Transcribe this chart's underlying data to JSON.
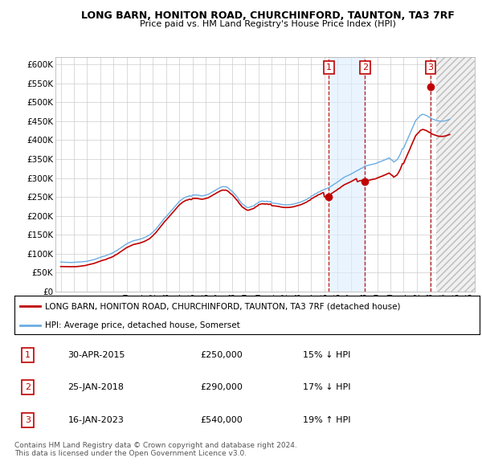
{
  "title": "LONG BARN, HONITON ROAD, CHURCHINFORD, TAUNTON, TA3 7RF",
  "subtitle": "Price paid vs. HM Land Registry's House Price Index (HPI)",
  "ylabel_ticks": [
    "£0",
    "£50K",
    "£100K",
    "£150K",
    "£200K",
    "£250K",
    "£300K",
    "£350K",
    "£400K",
    "£450K",
    "£500K",
    "£550K",
    "£600K"
  ],
  "ytick_values": [
    0,
    50000,
    100000,
    150000,
    200000,
    250000,
    300000,
    350000,
    400000,
    450000,
    500000,
    550000,
    600000
  ],
  "ylim": [
    0,
    620000
  ],
  "xlim_start": 1994.6,
  "xlim_end": 2026.4,
  "hpi_color": "#6aade4",
  "price_color": "#c00000",
  "grid_color": "#cccccc",
  "bg_color": "#ffffff",
  "legend_label_red": "LONG BARN, HONITON ROAD, CHURCHINFORD, TAUNTON, TA3 7RF (detached house)",
  "legend_label_blue": "HPI: Average price, detached house, Somerset",
  "shade_start": 2015.33,
  "shade_end": 2018.07,
  "hatch_start": 2023.5,
  "transactions": [
    {
      "num": 1,
      "date": "30-APR-2015",
      "price": 250000,
      "pct": "15%",
      "dir": "↓",
      "x_year": 2015.33
    },
    {
      "num": 2,
      "date": "25-JAN-2018",
      "price": 290000,
      "pct": "17%",
      "dir": "↓",
      "x_year": 2018.07
    },
    {
      "num": 3,
      "date": "16-JAN-2023",
      "price": 540000,
      "pct": "19%",
      "dir": "↑",
      "x_year": 2023.05
    }
  ],
  "footnote": "Contains HM Land Registry data © Crown copyright and database right 2024.\nThis data is licensed under the Open Government Licence v3.0.",
  "hpi_data_years": [
    1995.0,
    1995.08,
    1995.17,
    1995.25,
    1995.33,
    1995.42,
    1995.5,
    1995.58,
    1995.67,
    1995.75,
    1995.83,
    1995.92,
    1996.0,
    1996.08,
    1996.17,
    1996.25,
    1996.33,
    1996.42,
    1996.5,
    1996.58,
    1996.67,
    1996.75,
    1996.83,
    1996.92,
    1997.0,
    1997.08,
    1997.17,
    1997.25,
    1997.33,
    1997.42,
    1997.5,
    1997.58,
    1997.67,
    1997.75,
    1997.83,
    1997.92,
    1998.0,
    1998.08,
    1998.17,
    1998.25,
    1998.33,
    1998.42,
    1998.5,
    1998.58,
    1998.67,
    1998.75,
    1998.83,
    1998.92,
    1999.0,
    1999.08,
    1999.17,
    1999.25,
    1999.33,
    1999.42,
    1999.5,
    1999.58,
    1999.67,
    1999.75,
    1999.83,
    1999.92,
    2000.0,
    2000.08,
    2000.17,
    2000.25,
    2000.33,
    2000.42,
    2000.5,
    2000.58,
    2000.67,
    2000.75,
    2000.83,
    2000.92,
    2001.0,
    2001.08,
    2001.17,
    2001.25,
    2001.33,
    2001.42,
    2001.5,
    2001.58,
    2001.67,
    2001.75,
    2001.83,
    2001.92,
    2002.0,
    2002.08,
    2002.17,
    2002.25,
    2002.33,
    2002.42,
    2002.5,
    2002.58,
    2002.67,
    2002.75,
    2002.83,
    2002.92,
    2003.0,
    2003.08,
    2003.17,
    2003.25,
    2003.33,
    2003.42,
    2003.5,
    2003.58,
    2003.67,
    2003.75,
    2003.83,
    2003.92,
    2004.0,
    2004.08,
    2004.17,
    2004.25,
    2004.33,
    2004.42,
    2004.5,
    2004.58,
    2004.67,
    2004.75,
    2004.83,
    2004.92,
    2005.0,
    2005.08,
    2005.17,
    2005.25,
    2005.33,
    2005.42,
    2005.5,
    2005.58,
    2005.67,
    2005.75,
    2005.83,
    2005.92,
    2006.0,
    2006.08,
    2006.17,
    2006.25,
    2006.33,
    2006.42,
    2006.5,
    2006.58,
    2006.67,
    2006.75,
    2006.83,
    2006.92,
    2007.0,
    2007.08,
    2007.17,
    2007.25,
    2007.33,
    2007.42,
    2007.5,
    2007.58,
    2007.67,
    2007.75,
    2007.83,
    2007.92,
    2008.0,
    2008.08,
    2008.17,
    2008.25,
    2008.33,
    2008.42,
    2008.5,
    2008.58,
    2008.67,
    2008.75,
    2008.83,
    2008.92,
    2009.0,
    2009.08,
    2009.17,
    2009.25,
    2009.33,
    2009.42,
    2009.5,
    2009.58,
    2009.67,
    2009.75,
    2009.83,
    2009.92,
    2010.0,
    2010.08,
    2010.17,
    2010.25,
    2010.33,
    2010.42,
    2010.5,
    2010.58,
    2010.67,
    2010.75,
    2010.83,
    2010.92,
    2011.0,
    2011.08,
    2011.17,
    2011.25,
    2011.33,
    2011.42,
    2011.5,
    2011.58,
    2011.67,
    2011.75,
    2011.83,
    2011.92,
    2012.0,
    2012.08,
    2012.17,
    2012.25,
    2012.33,
    2012.42,
    2012.5,
    2012.58,
    2012.67,
    2012.75,
    2012.83,
    2012.92,
    2013.0,
    2013.08,
    2013.17,
    2013.25,
    2013.33,
    2013.42,
    2013.5,
    2013.58,
    2013.67,
    2013.75,
    2013.83,
    2013.92,
    2014.0,
    2014.08,
    2014.17,
    2014.25,
    2014.33,
    2014.42,
    2014.5,
    2014.58,
    2014.67,
    2014.75,
    2014.83,
    2014.92,
    2015.0,
    2015.08,
    2015.17,
    2015.25,
    2015.33,
    2015.42,
    2015.5,
    2015.58,
    2015.67,
    2015.75,
    2015.83,
    2015.92,
    2016.0,
    2016.08,
    2016.17,
    2016.25,
    2016.33,
    2016.42,
    2016.5,
    2016.58,
    2016.67,
    2016.75,
    2016.83,
    2016.92,
    2017.0,
    2017.08,
    2017.17,
    2017.25,
    2017.33,
    2017.42,
    2017.5,
    2017.58,
    2017.67,
    2017.75,
    2017.83,
    2017.92,
    2018.0,
    2018.08,
    2018.17,
    2018.25,
    2018.33,
    2018.42,
    2018.5,
    2018.58,
    2018.67,
    2018.75,
    2018.83,
    2018.92,
    2019.0,
    2019.08,
    2019.17,
    2019.25,
    2019.33,
    2019.42,
    2019.5,
    2019.58,
    2019.67,
    2019.75,
    2019.83,
    2019.92,
    2020.0,
    2020.08,
    2020.17,
    2020.25,
    2020.33,
    2020.42,
    2020.5,
    2020.58,
    2020.67,
    2020.75,
    2020.83,
    2020.92,
    2021.0,
    2021.08,
    2021.17,
    2021.25,
    2021.33,
    2021.42,
    2021.5,
    2021.58,
    2021.67,
    2021.75,
    2021.83,
    2021.92,
    2022.0,
    2022.08,
    2022.17,
    2022.25,
    2022.33,
    2022.42,
    2022.5,
    2022.58,
    2022.67,
    2022.75,
    2022.83,
    2022.92,
    2023.0,
    2023.08,
    2023.17,
    2023.25,
    2023.33,
    2023.42,
    2023.5,
    2023.58,
    2023.67,
    2023.75,
    2023.83,
    2023.92,
    2024.0,
    2024.08,
    2024.17,
    2024.25,
    2024.33,
    2024.42,
    2024.5
  ],
  "hpi_data_values": [
    78000,
    77800,
    77600,
    77500,
    77300,
    77100,
    77000,
    76900,
    76700,
    76500,
    76700,
    76900,
    77000,
    77100,
    77300,
    77500,
    77700,
    77900,
    78000,
    78300,
    78700,
    79000,
    79400,
    79700,
    80000,
    80700,
    81400,
    82000,
    82700,
    83400,
    84000,
    85000,
    86000,
    87000,
    88200,
    89400,
    90000,
    91200,
    92400,
    93000,
    93700,
    94500,
    96000,
    97200,
    98200,
    99000,
    100200,
    101700,
    103000,
    105000,
    107000,
    108000,
    110000,
    112000,
    114000,
    116000,
    118000,
    120000,
    122000,
    124000,
    126000,
    127300,
    128700,
    130000,
    131300,
    132700,
    134000,
    134700,
    135300,
    136000,
    136700,
    137300,
    138000,
    139000,
    140000,
    141000,
    142200,
    143700,
    145000,
    146700,
    148300,
    150000,
    152500,
    155000,
    157000,
    160000,
    163000,
    166000,
    169700,
    173700,
    177000,
    180700,
    184300,
    188000,
    191700,
    195300,
    198000,
    201300,
    204700,
    208000,
    211300,
    214700,
    218000,
    221300,
    224700,
    228000,
    231300,
    234700,
    238000,
    240300,
    242700,
    245000,
    246700,
    248300,
    250000,
    250700,
    251300,
    253000,
    252300,
    251700,
    255000,
    255000,
    255000,
    255000,
    255000,
    254500,
    254000,
    253500,
    253000,
    253000,
    253500,
    254000,
    255000,
    255700,
    256300,
    258000,
    259700,
    261300,
    263000,
    264700,
    266300,
    268000,
    269700,
    271300,
    273000,
    274300,
    275700,
    277000,
    277000,
    276700,
    277000,
    276000,
    274700,
    272000,
    269300,
    266700,
    265000,
    261700,
    258300,
    255000,
    251700,
    248300,
    243000,
    239300,
    235700,
    232000,
    230000,
    228000,
    225000,
    223300,
    221700,
    222000,
    223000,
    224000,
    225000,
    226000,
    227000,
    230000,
    231500,
    233000,
    236000,
    237000,
    238000,
    239000,
    238700,
    238300,
    238000,
    238300,
    238700,
    237000,
    237700,
    238300,
    234000,
    233700,
    233300,
    233000,
    232700,
    232300,
    232000,
    231300,
    230700,
    230000,
    229700,
    229300,
    229000,
    229000,
    229000,
    229000,
    229200,
    229700,
    230000,
    230500,
    231000,
    232000,
    232700,
    233300,
    234000,
    235000,
    236000,
    237000,
    238200,
    239700,
    241000,
    242300,
    243700,
    246000,
    247300,
    248700,
    252000,
    253300,
    254700,
    257000,
    258300,
    259700,
    262000,
    263000,
    264000,
    266000,
    267300,
    268700,
    270000,
    271000,
    272000,
    273000,
    274700,
    276300,
    278000,
    280000,
    282000,
    284000,
    285700,
    287300,
    290000,
    291700,
    293300,
    296000,
    298000,
    300000,
    302000,
    303300,
    304700,
    306000,
    307300,
    308700,
    310000,
    311700,
    313300,
    315000,
    316700,
    318300,
    320000,
    321300,
    322700,
    325000,
    326000,
    327000,
    330000,
    331000,
    332000,
    333000,
    333700,
    334300,
    335000,
    335700,
    336300,
    337000,
    337700,
    338300,
    340000,
    341000,
    342000,
    343000,
    344000,
    345500,
    347000,
    348000,
    349000,
    351000,
    352000,
    353000,
    350000,
    348000,
    346000,
    342000,
    344000,
    346000,
    348000,
    352000,
    358000,
    363000,
    370000,
    378000,
    378000,
    385000,
    392000,
    398000,
    405000,
    412000,
    418000,
    425000,
    432000,
    438000,
    445000,
    452000,
    455000,
    458000,
    461000,
    465000,
    466500,
    468000,
    468000,
    467000,
    466000,
    465000,
    463000,
    461000,
    460000,
    458000,
    456000,
    455000,
    454000,
    453000,
    452000,
    451000,
    450500,
    450000,
    450000,
    450000,
    450000,
    450500,
    451000,
    452000,
    453000,
    454000,
    455000
  ],
  "price_data_years": [
    1995.0,
    1995.08,
    1995.17,
    1995.25,
    1995.33,
    1995.42,
    1995.5,
    1995.58,
    1995.67,
    1995.75,
    1995.83,
    1995.92,
    1996.0,
    1996.08,
    1996.17,
    1996.25,
    1996.33,
    1996.42,
    1996.5,
    1996.58,
    1996.67,
    1996.75,
    1996.83,
    1996.92,
    1997.0,
    1997.08,
    1997.17,
    1997.25,
    1997.33,
    1997.42,
    1997.5,
    1997.58,
    1997.67,
    1997.75,
    1997.83,
    1997.92,
    1998.0,
    1998.08,
    1998.17,
    1998.25,
    1998.33,
    1998.42,
    1998.5,
    1998.58,
    1998.67,
    1998.75,
    1998.83,
    1998.92,
    1999.0,
    1999.08,
    1999.17,
    1999.25,
    1999.33,
    1999.42,
    1999.5,
    1999.58,
    1999.67,
    1999.75,
    1999.83,
    1999.92,
    2000.0,
    2000.08,
    2000.17,
    2000.25,
    2000.33,
    2000.42,
    2000.5,
    2000.58,
    2000.67,
    2000.75,
    2000.83,
    2000.92,
    2001.0,
    2001.08,
    2001.17,
    2001.25,
    2001.33,
    2001.42,
    2001.5,
    2001.58,
    2001.67,
    2001.75,
    2001.83,
    2001.92,
    2002.0,
    2002.08,
    2002.17,
    2002.25,
    2002.33,
    2002.42,
    2002.5,
    2002.58,
    2002.67,
    2002.75,
    2002.83,
    2002.92,
    2003.0,
    2003.08,
    2003.17,
    2003.25,
    2003.33,
    2003.42,
    2003.5,
    2003.58,
    2003.67,
    2003.75,
    2003.83,
    2003.92,
    2004.0,
    2004.08,
    2004.17,
    2004.25,
    2004.33,
    2004.42,
    2004.5,
    2004.58,
    2004.67,
    2004.75,
    2004.83,
    2004.92,
    2005.0,
    2005.08,
    2005.17,
    2005.25,
    2005.33,
    2005.42,
    2005.5,
    2005.58,
    2005.67,
    2005.75,
    2005.83,
    2005.92,
    2006.0,
    2006.08,
    2006.17,
    2006.25,
    2006.33,
    2006.42,
    2006.5,
    2006.58,
    2006.67,
    2006.75,
    2006.83,
    2006.92,
    2007.0,
    2007.08,
    2007.17,
    2007.25,
    2007.33,
    2007.42,
    2007.5,
    2007.58,
    2007.67,
    2007.75,
    2007.83,
    2007.92,
    2008.0,
    2008.08,
    2008.17,
    2008.25,
    2008.33,
    2008.42,
    2008.5,
    2008.58,
    2008.67,
    2008.75,
    2008.83,
    2008.92,
    2009.0,
    2009.08,
    2009.17,
    2009.25,
    2009.33,
    2009.42,
    2009.5,
    2009.58,
    2009.67,
    2009.75,
    2009.83,
    2009.92,
    2010.0,
    2010.08,
    2010.17,
    2010.25,
    2010.33,
    2010.42,
    2010.5,
    2010.58,
    2010.67,
    2010.75,
    2010.83,
    2010.92,
    2011.0,
    2011.08,
    2011.17,
    2011.25,
    2011.33,
    2011.42,
    2011.5,
    2011.58,
    2011.67,
    2011.75,
    2011.83,
    2011.92,
    2012.0,
    2012.08,
    2012.17,
    2012.25,
    2012.33,
    2012.42,
    2012.5,
    2012.58,
    2012.67,
    2012.75,
    2012.83,
    2012.92,
    2013.0,
    2013.08,
    2013.17,
    2013.25,
    2013.33,
    2013.42,
    2013.5,
    2013.58,
    2013.67,
    2013.75,
    2013.83,
    2013.92,
    2014.0,
    2014.08,
    2014.17,
    2014.25,
    2014.33,
    2014.42,
    2014.5,
    2014.58,
    2014.67,
    2014.75,
    2014.83,
    2014.92,
    2015.0,
    2015.08,
    2015.17,
    2015.25,
    2015.33,
    2015.42,
    2015.5,
    2015.58,
    2015.67,
    2015.75,
    2015.83,
    2015.92,
    2016.0,
    2016.08,
    2016.17,
    2016.25,
    2016.33,
    2016.42,
    2016.5,
    2016.58,
    2016.67,
    2016.75,
    2016.83,
    2016.92,
    2017.0,
    2017.08,
    2017.17,
    2017.25,
    2017.33,
    2017.42,
    2017.5,
    2017.58,
    2017.67,
    2017.75,
    2017.83,
    2017.92,
    2018.0,
    2018.08,
    2018.17,
    2018.25,
    2018.33,
    2018.42,
    2018.5,
    2018.58,
    2018.67,
    2018.75,
    2018.83,
    2018.92,
    2019.0,
    2019.08,
    2019.17,
    2019.25,
    2019.33,
    2019.42,
    2019.5,
    2019.58,
    2019.67,
    2019.75,
    2019.83,
    2019.92,
    2020.0,
    2020.08,
    2020.17,
    2020.25,
    2020.33,
    2020.42,
    2020.5,
    2020.58,
    2020.67,
    2020.75,
    2020.83,
    2020.92,
    2021.0,
    2021.08,
    2021.17,
    2021.25,
    2021.33,
    2021.42,
    2021.5,
    2021.58,
    2021.67,
    2021.75,
    2021.83,
    2021.92,
    2022.0,
    2022.08,
    2022.17,
    2022.25,
    2022.33,
    2022.42,
    2022.5,
    2022.58,
    2022.67,
    2022.75,
    2022.83,
    2022.92,
    2023.0,
    2023.08,
    2023.17,
    2023.25,
    2023.33,
    2023.42,
    2023.5,
    2023.58,
    2023.67,
    2023.75,
    2023.83,
    2023.92,
    2024.0,
    2024.08,
    2024.17,
    2024.25,
    2024.33,
    2024.42,
    2024.5
  ],
  "price_data_values": [
    66000,
    66000,
    66000,
    66000,
    65800,
    65700,
    65500,
    65600,
    65700,
    65500,
    65600,
    65800,
    65500,
    65600,
    65700,
    66000,
    66200,
    66600,
    67000,
    67300,
    67700,
    68000,
    68500,
    69000,
    70000,
    70700,
    71300,
    72000,
    72700,
    73300,
    74000,
    75000,
    76000,
    77000,
    78200,
    79400,
    80000,
    81200,
    82400,
    83000,
    83700,
    84500,
    86000,
    87200,
    88200,
    89000,
    90200,
    91700,
    93000,
    95000,
    97000,
    98000,
    100000,
    102000,
    104000,
    106000,
    108000,
    110000,
    112000,
    114000,
    116000,
    117300,
    118700,
    120000,
    121300,
    122700,
    124000,
    124700,
    125300,
    126000,
    126700,
    127300,
    128000,
    129000,
    130000,
    131000,
    132200,
    133700,
    135000,
    136700,
    138300,
    140000,
    142500,
    145000,
    148000,
    151000,
    154000,
    157000,
    160700,
    164700,
    168000,
    171700,
    175300,
    179000,
    182700,
    186300,
    189000,
    192300,
    195700,
    199000,
    202300,
    205700,
    209000,
    212300,
    215700,
    219000,
    222300,
    225700,
    229000,
    231300,
    233700,
    236000,
    237700,
    239300,
    241000,
    241700,
    242300,
    244000,
    243300,
    242700,
    246000,
    246000,
    246000,
    246000,
    246000,
    245500,
    245000,
    244500,
    244000,
    244000,
    244500,
    245000,
    246000,
    246700,
    247300,
    249000,
    250700,
    252300,
    254000,
    255700,
    257300,
    259000,
    260700,
    262300,
    264000,
    265300,
    266700,
    268000,
    268000,
    267700,
    268000,
    267000,
    265700,
    263000,
    260300,
    257700,
    256000,
    252700,
    249300,
    246000,
    242700,
    239300,
    235000,
    231300,
    227700,
    224000,
    222000,
    220000,
    218000,
    216300,
    214700,
    215000,
    216000,
    217000,
    218000,
    219000,
    220000,
    223000,
    224500,
    226000,
    229000,
    230000,
    231000,
    232000,
    231700,
    231300,
    231000,
    231300,
    231700,
    230000,
    230700,
    231300,
    227000,
    226700,
    226300,
    226000,
    225700,
    225300,
    225000,
    224300,
    223700,
    223000,
    222700,
    222300,
    222000,
    222000,
    222000,
    222000,
    222200,
    222700,
    223000,
    223500,
    224000,
    225000,
    225700,
    226300,
    227000,
    228000,
    229000,
    230000,
    231200,
    232700,
    234000,
    235300,
    236700,
    239000,
    240300,
    241700,
    245000,
    246300,
    247700,
    250000,
    251300,
    252700,
    255000,
    256000,
    257000,
    259000,
    260300,
    261700,
    250000,
    251000,
    252000,
    253000,
    254700,
    256300,
    258000,
    260000,
    262000,
    264000,
    265700,
    267300,
    270000,
    271700,
    273300,
    276000,
    278000,
    280000,
    282000,
    283300,
    284700,
    286000,
    287300,
    288700,
    290000,
    291700,
    293300,
    295000,
    296700,
    298300,
    290000,
    291300,
    292700,
    293000,
    293700,
    294300,
    290000,
    291000,
    292000,
    293000,
    293700,
    294300,
    295000,
    295700,
    296300,
    297000,
    297700,
    298300,
    300000,
    301000,
    302000,
    303000,
    304000,
    305500,
    307000,
    308000,
    309000,
    311000,
    312000,
    313000,
    310000,
    308000,
    306000,
    302000,
    304000,
    306000,
    308000,
    312000,
    318000,
    323000,
    330000,
    338000,
    338000,
    345000,
    352000,
    358000,
    365000,
    372000,
    378000,
    385000,
    392000,
    398000,
    405000,
    412000,
    415000,
    418000,
    421000,
    425000,
    426500,
    428000,
    428000,
    427000,
    426000,
    425000,
    423000,
    421000,
    420000,
    418000,
    416000,
    415000,
    414000,
    413000,
    412000,
    411000,
    410500,
    410000,
    410000,
    410000,
    410000,
    410500,
    411000,
    412000,
    413000,
    414000,
    415000
  ]
}
